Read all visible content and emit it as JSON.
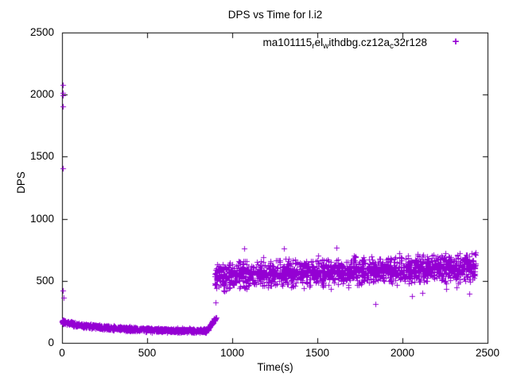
{
  "chart_data": {
    "type": "scatter",
    "title": "DPS vs Time for l.i2",
    "xlabel": "Time(s)",
    "ylabel": "DPS",
    "xlim": [
      0,
      2500
    ],
    "ylim": [
      0,
      2500
    ],
    "xticks": [
      0,
      500,
      1000,
      1500,
      2000,
      2500
    ],
    "yticks": [
      0,
      500,
      1000,
      1500,
      2000,
      2500
    ],
    "grid": false,
    "border": true,
    "tick_style": "inward-mirrored",
    "axis_color": "#000000",
    "background_color": "#ffffff",
    "legend": {
      "position": "top-inside-right",
      "marker_glyph": "+",
      "entries": [
        {
          "label_raw": "ma101115_rel_withdbg.cz12a_c32r128",
          "label_segments": [
            {
              "t": "ma101115"
            },
            {
              "s": "r"
            },
            {
              "t": "el"
            },
            {
              "s": "w"
            },
            {
              "t": "ithdbg.cz12a"
            },
            {
              "s": "c"
            },
            {
              "t": "32r128"
            }
          ],
          "color": "#9400d3"
        }
      ]
    },
    "series": [
      {
        "name": "ma101115_rel_withdbg.cz12a_c32r128",
        "color": "#9400d3",
        "marker": "plus",
        "seed": 123457,
        "band_segments": [
          {
            "kind": "decay",
            "t0": 0,
            "t1": 850,
            "n": 1250,
            "base": 96,
            "amp": 74,
            "tau": 260,
            "spread": 24
          },
          {
            "kind": "ramp",
            "t0": 850,
            "t1": 905,
            "n": 110,
            "from": 100,
            "to": 205,
            "spread": 18
          },
          {
            "kind": "flat",
            "t0": 895,
            "t1": 2432,
            "n": 1750,
            "c0": 543,
            "slope": 0.042,
            "spread": 148
          }
        ],
        "outlier_points": [
          [
            3,
            2075
          ],
          [
            7,
            2012
          ],
          [
            4,
            1993
          ],
          [
            5,
            1908
          ],
          [
            4,
            1408
          ],
          [
            6,
            424
          ],
          [
            9,
            366
          ],
          [
            902,
            328
          ],
          [
            1069,
            758
          ],
          [
            1306,
            762
          ],
          [
            1613,
            766
          ],
          [
            1580,
            432
          ],
          [
            1680,
            448
          ],
          [
            1841,
            315
          ],
          [
            2056,
            380
          ],
          [
            2117,
            402
          ],
          [
            2255,
            435
          ],
          [
            2320,
            450
          ],
          [
            2393,
            398
          ]
        ]
      }
    ]
  }
}
